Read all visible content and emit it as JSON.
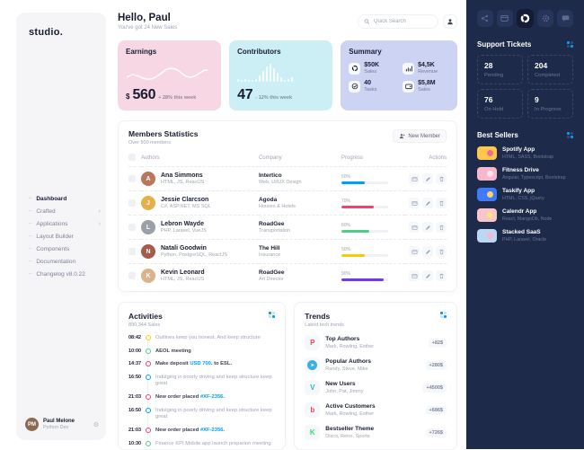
{
  "colors": {
    "primary": "#009EF7",
    "danger": "#F1416C",
    "success": "#50CD89",
    "warning": "#FFC700",
    "purple": "#7239EA",
    "dark": "#181C32",
    "right_sidebar_bg": "#1E2A49"
  },
  "sidebar": {
    "logo": "studio.",
    "items": [
      {
        "label": "Dashboard",
        "active": true
      },
      {
        "label": "Crafted",
        "chevron": true
      },
      {
        "label": "Applications",
        "chevron": true
      },
      {
        "label": "Layout Builder"
      },
      {
        "label": "Components"
      },
      {
        "label": "Documentation"
      },
      {
        "label": "Changelog v8.0.22"
      }
    ],
    "user": {
      "name": "Paul Melone",
      "role": "Python Dev",
      "initials": "PM",
      "avatar_color": "#8A6A52"
    }
  },
  "header": {
    "greeting": "Hello, Paul",
    "subtitle": "You've got 24 New Sales",
    "search_placeholder": "Quick Search"
  },
  "cards": {
    "earnings": {
      "title": "Earnings",
      "currency": "$",
      "value": "560",
      "delta": "+ 28% this week"
    },
    "contributors": {
      "title": "Contributors",
      "value": "47",
      "delta": "- 12% this week",
      "sparkline": [
        2,
        1,
        2,
        1,
        1,
        2,
        4,
        7,
        10,
        12,
        9,
        6,
        3,
        1,
        2,
        3
      ]
    },
    "summary": {
      "title": "Summary",
      "items": [
        {
          "icon": "cycle-icon",
          "value": "$50K",
          "label": "Sales"
        },
        {
          "icon": "graph-icon",
          "value": "$4,5K",
          "label": "Revenue"
        },
        {
          "icon": "tasks-icon",
          "value": "40",
          "label": "Tasks"
        },
        {
          "icon": "wallet-icon",
          "value": "$5,8M",
          "label": "Sales"
        }
      ]
    }
  },
  "members": {
    "title": "Members Statistics",
    "subtitle": "Over 500 members",
    "button_label": "New Member",
    "columns": {
      "authors": "Authors",
      "company": "Company",
      "progress": "Progress",
      "actions": "Actions"
    },
    "rows": [
      {
        "name": "Ana Simmons",
        "skills": "HTML, JS, ReactJS",
        "company": "Intertico",
        "field": "Web, UI/UX Design",
        "progress": 50,
        "progress_label": "50%",
        "color": "#009EF7",
        "avatar_color": "#B9775C",
        "initial": "A"
      },
      {
        "name": "Jessie Clarcson",
        "skills": "C#, ASP.NET, MS SQL",
        "company": "Agoda",
        "field": "Houses & Hotels",
        "progress": 70,
        "progress_label": "70%",
        "color": "#F1416C",
        "avatar_color": "#E3B04B",
        "initial": "J"
      },
      {
        "name": "Lebron Wayde",
        "skills": "PHP, Laravel, VueJS",
        "company": "RoadGee",
        "field": "Transportation",
        "progress": 60,
        "progress_label": "60%",
        "color": "#50CD89",
        "avatar_color": "#9AA0A8",
        "initial": "L"
      },
      {
        "name": "Natali Goodwin",
        "skills": "Python, PostgreSQL, ReactJS",
        "company": "The Hill",
        "field": "Insurance",
        "progress": 50,
        "progress_label": "50%",
        "color": "#FFC700",
        "avatar_color": "#A65B4B",
        "initial": "N"
      },
      {
        "name": "Kevin Leonard",
        "skills": "HTML, JS, ReactJS",
        "company": "RoadGee",
        "field": "Art Director",
        "progress": 90,
        "progress_label": "90%",
        "color": "#7239EA",
        "avatar_color": "#D9B38C",
        "initial": "K"
      }
    ]
  },
  "activities": {
    "title": "Activities",
    "subtitle": "890,344 Sales",
    "items": [
      {
        "time": "08:42",
        "color": "#FFC700",
        "pre": "Outlines keep you honest. And keep structure",
        "tone": "muted"
      },
      {
        "time": "10:00",
        "color": "#50CD89",
        "pre": "AEOL meeting",
        "tone": "dark"
      },
      {
        "time": "14:37",
        "color": "#F1416C",
        "pre": "Make deposit ",
        "link": "USD 700",
        "post": ". to ESL.",
        "tone": "dark"
      },
      {
        "time": "16:50",
        "color": "#009EF7",
        "pre": "Indulging in poorly driving and keep structure keep great",
        "tone": "muted"
      },
      {
        "time": "21:03",
        "color": "#F1416C",
        "pre": "New order placed ",
        "link": "#XF-2356",
        "post": ".",
        "tone": "dark"
      },
      {
        "time": "16:50",
        "color": "#009EF7",
        "pre": "Indulging in poorly driving and keep structure keep great",
        "tone": "muted"
      },
      {
        "time": "21:03",
        "color": "#F1416C",
        "pre": "New order placed ",
        "link": "#XF-2356",
        "post": ".",
        "tone": "dark"
      },
      {
        "time": "10:30",
        "color": "#50CD89",
        "pre": "Finance KPI Mobile app launch preparion meeting",
        "tone": "muted"
      }
    ]
  },
  "trends": {
    "title": "Trends",
    "subtitle": "Latest tech trends",
    "items": [
      {
        "icon": "plurk-logo-icon",
        "type": "letter",
        "glyph": "P",
        "color": "#F0484C",
        "name": "Top Authors",
        "people": "Mark, Rowling, Esther",
        "amount": "+82$"
      },
      {
        "icon": "telegram-logo-icon",
        "type": "circle",
        "glyph": "➤",
        "color": "#39AFE2",
        "name": "Popular Authors",
        "people": "Randy, Steve, Mike",
        "amount": "+280$"
      },
      {
        "icon": "vimeo-logo-icon",
        "type": "letter",
        "glyph": "V",
        "color": "#1AB7EA",
        "name": "New Users",
        "people": "John, Pat, Jimmy",
        "amount": "+4500$"
      },
      {
        "icon": "bebo-logo-icon",
        "type": "letter",
        "glyph": "b",
        "color": "#EF3E5B",
        "name": "Active Customers",
        "people": "Mark, Rowling, Esther",
        "amount": "+686$"
      },
      {
        "icon": "kickstarter-logo-icon",
        "type": "letter",
        "glyph": "K",
        "color": "#2BDE73",
        "name": "Bestseller Theme",
        "people": "Disco, Retro, Sports",
        "amount": "+726$"
      }
    ]
  },
  "right_panel": {
    "top_icons": [
      {
        "name": "share-nodes-icon"
      },
      {
        "name": "browser-window-icon"
      },
      {
        "name": "loader-icon",
        "active": true
      },
      {
        "name": "gear-icon"
      },
      {
        "name": "chat-icon"
      }
    ],
    "support_tickets": {
      "title": "Support Tickets",
      "stats": [
        {
          "value": "28",
          "label": "Pending"
        },
        {
          "value": "204",
          "label": "Completed"
        },
        {
          "value": "76",
          "label": "On Hold"
        },
        {
          "value": "9",
          "label": "In Progress"
        }
      ]
    },
    "best_sellers": {
      "title": "Best Sellers",
      "items": [
        {
          "name": "Spotify App",
          "stack": "HTML, SASS, Bootstrap",
          "thumb_bg": "#FFC84D",
          "thumb_accent": "#F06C8D"
        },
        {
          "name": "Fitness Drive",
          "stack": "Angular, Typescript, Bootstrap",
          "thumb_bg": "#F7B7CD",
          "thumb_accent": "#FBE3ED"
        },
        {
          "name": "Taskify App",
          "stack": "HTML, CSS, jQuery",
          "thumb_bg": "#3E7BFA",
          "thumb_accent": "#FFD36B"
        },
        {
          "name": "Calendr App",
          "stack": "React, MangoDb, Node",
          "thumb_bg": "#F9C6CE",
          "thumb_accent": "#FFE27A"
        },
        {
          "name": "Stacked SaaS",
          "stack": "PHP, Laravel, Oracle",
          "thumb_bg": "#BBD7F2",
          "thumb_accent": "#F6B9D0"
        }
      ]
    }
  }
}
